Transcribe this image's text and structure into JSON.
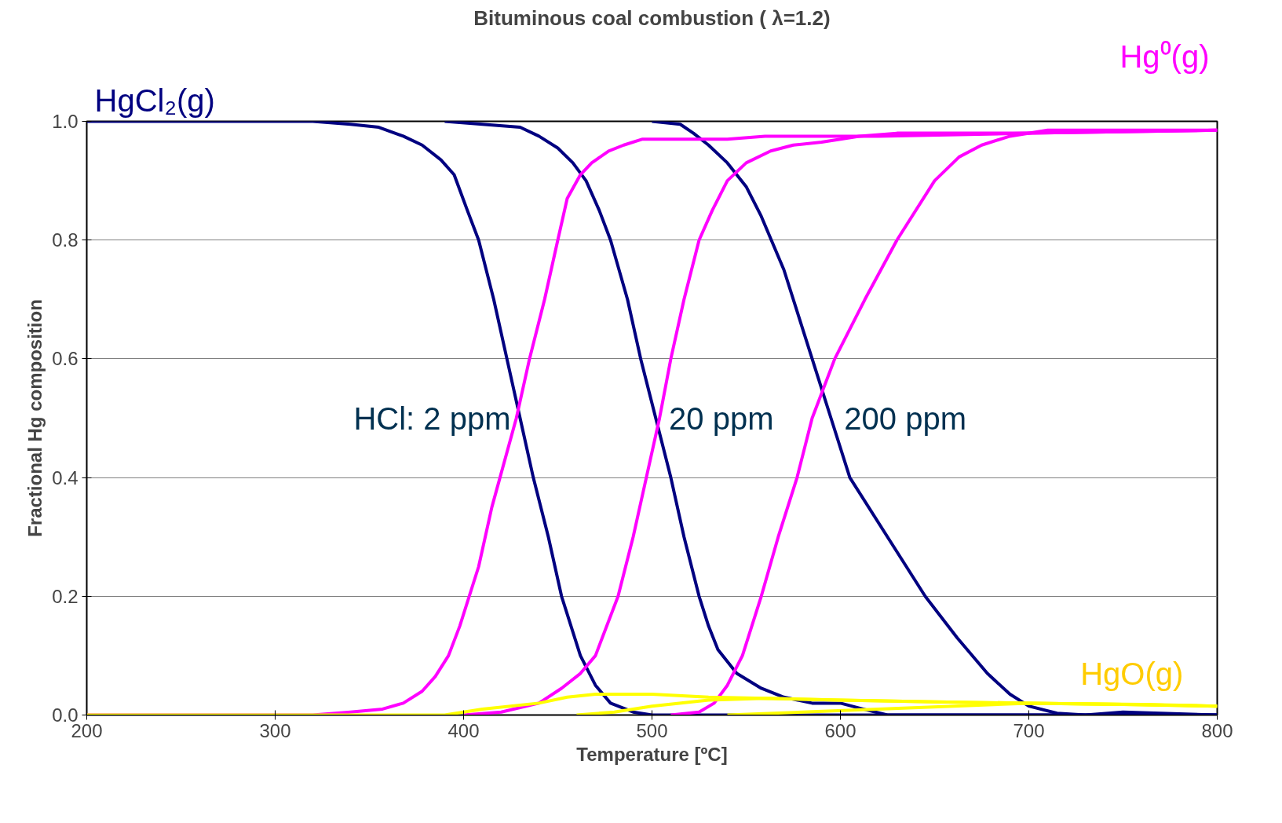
{
  "chart_data": {
    "type": "line",
    "title": "Bituminous coal combustion ( λ=1.2)",
    "xlabel": "Temperature [ºC]",
    "ylabel": "Fractional Hg composition",
    "xlim": [
      200,
      800
    ],
    "xticks": [
      200,
      300,
      400,
      500,
      600,
      700,
      800
    ],
    "ylim": [
      0,
      1.0
    ],
    "yticks": [
      {
        "value": 0,
        "label": "0.0"
      },
      0.2,
      0.4,
      0.6,
      0.8,
      {
        "value": 1,
        "label": "1.0"
      }
    ],
    "grid": "y",
    "marker": "none",
    "line_style": "solid",
    "series": [
      {
        "name": "HgCl₂(g)",
        "color": "#000080",
        "x": [
          200,
          320,
          340,
          355,
          368,
          378,
          388,
          395,
          402,
          408,
          416,
          423,
          430,
          437,
          445,
          452,
          462,
          470,
          478,
          490,
          500,
          800
        ],
        "values": [
          1.0,
          1.0,
          0.995,
          0.99,
          0.975,
          0.96,
          0.935,
          0.91,
          0.85,
          0.8,
          0.7,
          0.6,
          0.5,
          0.4,
          0.3,
          0.2,
          0.1,
          0.05,
          0.02,
          0.005,
          0,
          0
        ]
      },
      {
        "color": "#000080",
        "x": [
          390,
          430,
          440,
          450,
          458,
          465,
          472,
          478,
          487,
          494,
          502,
          510,
          517,
          525,
          530,
          535,
          545,
          558,
          570,
          585,
          600,
          612,
          625,
          800
        ],
        "values": [
          1.0,
          0.99,
          0.975,
          0.955,
          0.93,
          0.9,
          0.85,
          0.8,
          0.7,
          0.6,
          0.5,
          0.4,
          0.3,
          0.2,
          0.15,
          0.11,
          0.07,
          0.045,
          0.03,
          0.02,
          0.02,
          0.01,
          0,
          0
        ]
      },
      {
        "color": "#000080",
        "x": [
          500,
          515,
          522,
          530,
          540,
          550,
          558,
          570,
          585,
          595,
          605,
          625,
          645,
          662,
          678,
          690,
          700,
          715,
          730,
          750,
          800
        ],
        "values": [
          1.0,
          0.995,
          0.98,
          0.96,
          0.93,
          0.89,
          0.84,
          0.75,
          0.6,
          0.5,
          0.4,
          0.3,
          0.2,
          0.13,
          0.07,
          0.035,
          0.015,
          0.003,
          0,
          0.005,
          0
        ]
      },
      {
        "name": "Hg⁰(g)",
        "color": "#ff00ff",
        "x": [
          200,
          320,
          340,
          357,
          368,
          378,
          385,
          392,
          398,
          408,
          415,
          428,
          435,
          443,
          450,
          455,
          462,
          468,
          477,
          485,
          495,
          540,
          560,
          620,
          700,
          800
        ],
        "values": [
          0,
          0,
          0.005,
          0.01,
          0.02,
          0.04,
          0.065,
          0.1,
          0.15,
          0.25,
          0.35,
          0.5,
          0.6,
          0.7,
          0.8,
          0.87,
          0.91,
          0.93,
          0.95,
          0.96,
          0.97,
          0.97,
          0.975,
          0.975,
          0.98,
          0.985
        ]
      },
      {
        "color": "#ff00ff",
        "x": [
          400,
          420,
          440,
          452,
          462,
          470,
          482,
          490,
          497,
          504,
          510,
          517,
          525,
          532,
          540,
          550,
          563,
          575,
          590,
          610,
          630,
          700,
          800
        ],
        "values": [
          0,
          0.005,
          0.02,
          0.045,
          0.07,
          0.1,
          0.2,
          0.3,
          0.4,
          0.5,
          0.6,
          0.7,
          0.8,
          0.85,
          0.9,
          0.93,
          0.95,
          0.96,
          0.965,
          0.975,
          0.98,
          0.98,
          0.985
        ]
      },
      {
        "color": "#ff00ff",
        "x": [
          510,
          525,
          533,
          540,
          548,
          558,
          567,
          577,
          585,
          597,
          613,
          630,
          650,
          663,
          675,
          690,
          710,
          800
        ],
        "values": [
          0,
          0.005,
          0.02,
          0.05,
          0.1,
          0.2,
          0.3,
          0.4,
          0.5,
          0.6,
          0.7,
          0.8,
          0.9,
          0.94,
          0.96,
          0.975,
          0.985,
          0.985
        ]
      },
      {
        "name": "HgO(g)",
        "color": "#ffff00",
        "x": [
          200,
          390,
          410,
          440,
          455,
          470,
          500,
          530,
          560,
          600,
          650,
          700,
          750,
          800
        ],
        "values": [
          0,
          0,
          0.01,
          0.02,
          0.03,
          0.035,
          0.035,
          0.03,
          0.028,
          0.025,
          0.022,
          0.02,
          0.018,
          0.015
        ]
      },
      {
        "color": "#ffff00",
        "x": [
          460,
          480,
          500,
          530,
          560,
          600,
          650,
          700,
          750,
          800
        ],
        "values": [
          0,
          0.005,
          0.015,
          0.025,
          0.028,
          0.025,
          0.022,
          0.02,
          0.018,
          0.015
        ]
      },
      {
        "color": "#ffff00",
        "x": [
          540,
          580,
          620,
          660,
          700,
          760,
          800
        ],
        "values": [
          0,
          0.005,
          0.01,
          0.015,
          0.02,
          0.018,
          0.015
        ]
      }
    ],
    "annotations": [
      {
        "text": "HCl: 2 ppm",
        "x": 430,
        "y": 0.5
      },
      {
        "text": "20 ppm",
        "x": 504,
        "y": 0.5
      },
      {
        "text": "200 ppm",
        "x": 597,
        "y": 0.5
      }
    ]
  }
}
